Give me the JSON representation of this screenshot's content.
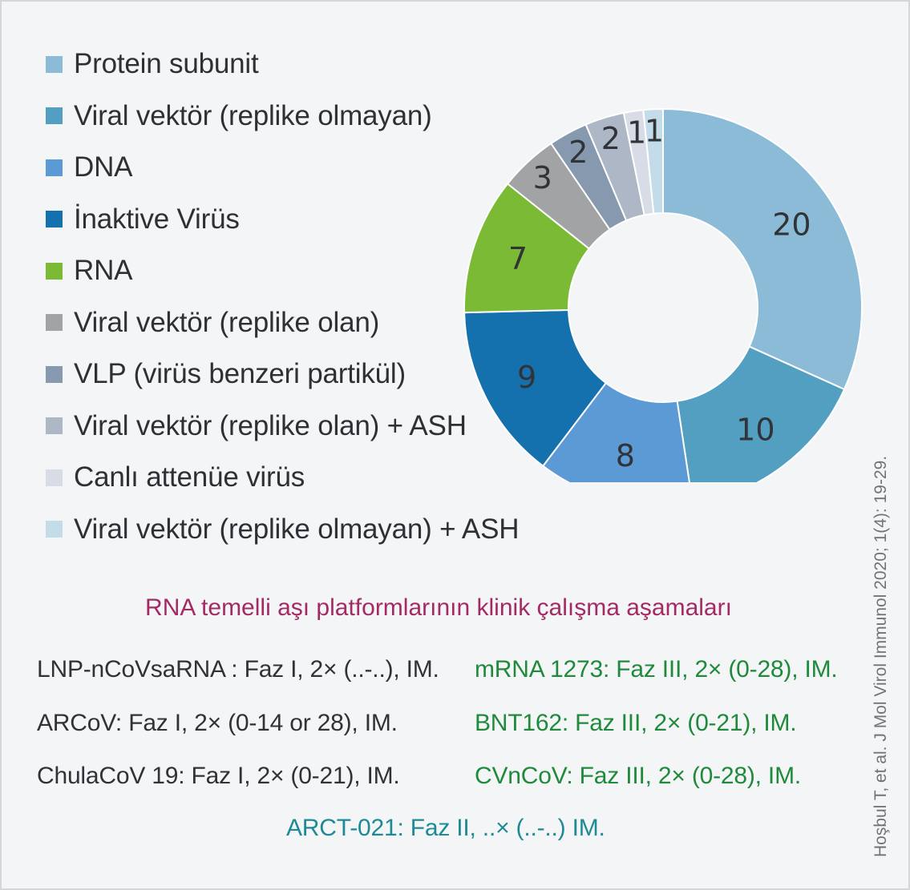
{
  "chart_data": {
    "type": "pie",
    "variant": "donut",
    "legend_position": "left",
    "start_angle": "top",
    "direction": "clockwise",
    "series": [
      {
        "label": "Protein subunit",
        "value": 20,
        "color": "#8bbbd6"
      },
      {
        "label": "Viral vektör (replike olmayan)",
        "value": 10,
        "color": "#529fc2"
      },
      {
        "label": "DNA",
        "value": 8,
        "color": "#5c9ad5"
      },
      {
        "label": "İnaktive Virüs",
        "value": 9,
        "color": "#1570ae"
      },
      {
        "label": "RNA",
        "value": 7,
        "color": "#7bba34"
      },
      {
        "label": "Viral vektör (replike olan)",
        "value": 3,
        "color": "#a2a3a4"
      },
      {
        "label": "VLP (virüs benzeri partikül)",
        "value": 2,
        "color": "#8699ae"
      },
      {
        "label": "Viral vektör (replike olan) + ASH",
        "value": 2,
        "color": "#aeb7c6"
      },
      {
        "label": "Canlı attenüe virüs",
        "value": 1,
        "color": "#d7dce6"
      },
      {
        "label": "Viral vektör (replike olmayan) + ASH",
        "value": 1,
        "color": "#c4dcea"
      }
    ]
  },
  "section": {
    "title": "RNA temelli aşı platformlarının klinik çalışma aşamaları",
    "trials_left": [
      "LNP-nCoVsaRNA : Faz I, 2× (..-..), IM.",
      "ARCoV: Faz I, 2× (0-14 or 28), IM.",
      "ChulaCoV 19: Faz I, 2× (0-21), IM."
    ],
    "trials_right": [
      "mRNA 1273: Faz III, 2× (0-28), IM.",
      "BNT162: Faz III, 2× (0-21), IM.",
      "CVnCoV: Faz III, 2× (0-28), IM."
    ],
    "trial_bottom": "ARCT-021: Faz II, ..× (..-..) IM.",
    "colors": {
      "title": "#a42a66",
      "phase1": "#2f3338",
      "phase3": "#1f8a3c",
      "phase2": "#1d8a96"
    }
  },
  "citation": "Hoşbul T, et al. J Mol Virol Immunol 2020; 1(4): 19-29."
}
